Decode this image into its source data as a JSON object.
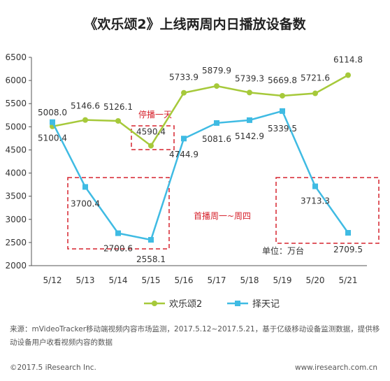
{
  "chart_data": {
    "type": "line",
    "title": "《欢乐颂2》上线两周内日播放设备数",
    "categories": [
      "5/12",
      "5/13",
      "5/14",
      "5/15",
      "5/16",
      "5/17",
      "5/18",
      "5/19",
      "5/20",
      "5/21"
    ],
    "ylim": [
      2000,
      6500
    ],
    "yticks": [
      2000,
      2500,
      3000,
      3500,
      4000,
      4500,
      5000,
      5500,
      6000,
      6500
    ],
    "grid": false,
    "legend_position": "bottom",
    "series": [
      {
        "name": "欢乐颂2",
        "color": "#a6c93a",
        "marker": "circle",
        "values": [
          5008.0,
          5146.6,
          5126.1,
          4590.4,
          5733.9,
          5879.9,
          5739.3,
          5669.8,
          5721.6,
          6114.8
        ],
        "labels": [
          "5008.0",
          "5146.6",
          "5126.1",
          "4590.4",
          "5733.9",
          "5879.9",
          "5739.3",
          "5669.8",
          "5721.6",
          "6114.8"
        ]
      },
      {
        "name": "择天记",
        "color": "#3fbbe3",
        "marker": "square",
        "values": [
          5100.4,
          3700.4,
          2700.6,
          2558.1,
          4744.9,
          5081.6,
          5142.9,
          5339.5,
          3713.3,
          2709.5
        ],
        "labels": [
          "5100.4",
          "3700.4",
          "2700.6",
          "2558.1",
          "4744.9",
          "5081.6",
          "5142.9",
          "5339.5",
          "3713.3",
          "2709.5"
        ]
      }
    ],
    "annotations": {
      "pause": "停播一天",
      "weekdays": "首播周一~周四",
      "unit": "单位：万台"
    },
    "annotation_color": "#d6242e"
  },
  "source_text": "来源：mVideoTracker移动端视频内容市场监测，2017.5.12~2017.5.21，基于亿级移动设备监测数据，提供移动设备用户收看视频内容的数据",
  "copyright": "©2017.5 iResearch Inc.",
  "website": "www.iresearch.com.cn"
}
